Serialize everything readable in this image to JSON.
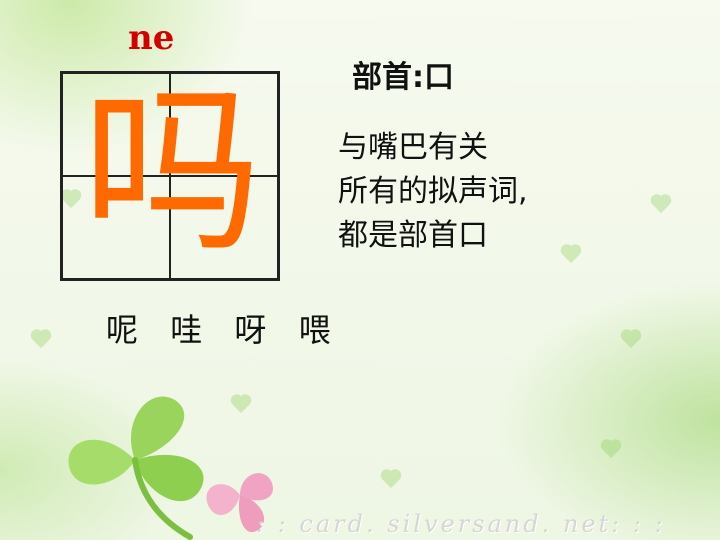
{
  "pinyin": "ne",
  "character": "吗",
  "radical_line": "部首:口",
  "description_lines": [
    "与嘴巴有关",
    "所有的拟声词,",
    "都是部首口"
  ],
  "examples": [
    "呢",
    "哇",
    "呀",
    "喂"
  ],
  "watermark": ": : card. silversand. net: : :",
  "colors": {
    "pinyin": "#d40000",
    "character": "#ff6a00",
    "text": "#111111",
    "clover_green": "#8fd14f",
    "clover_pink": "#f2a9c6"
  }
}
